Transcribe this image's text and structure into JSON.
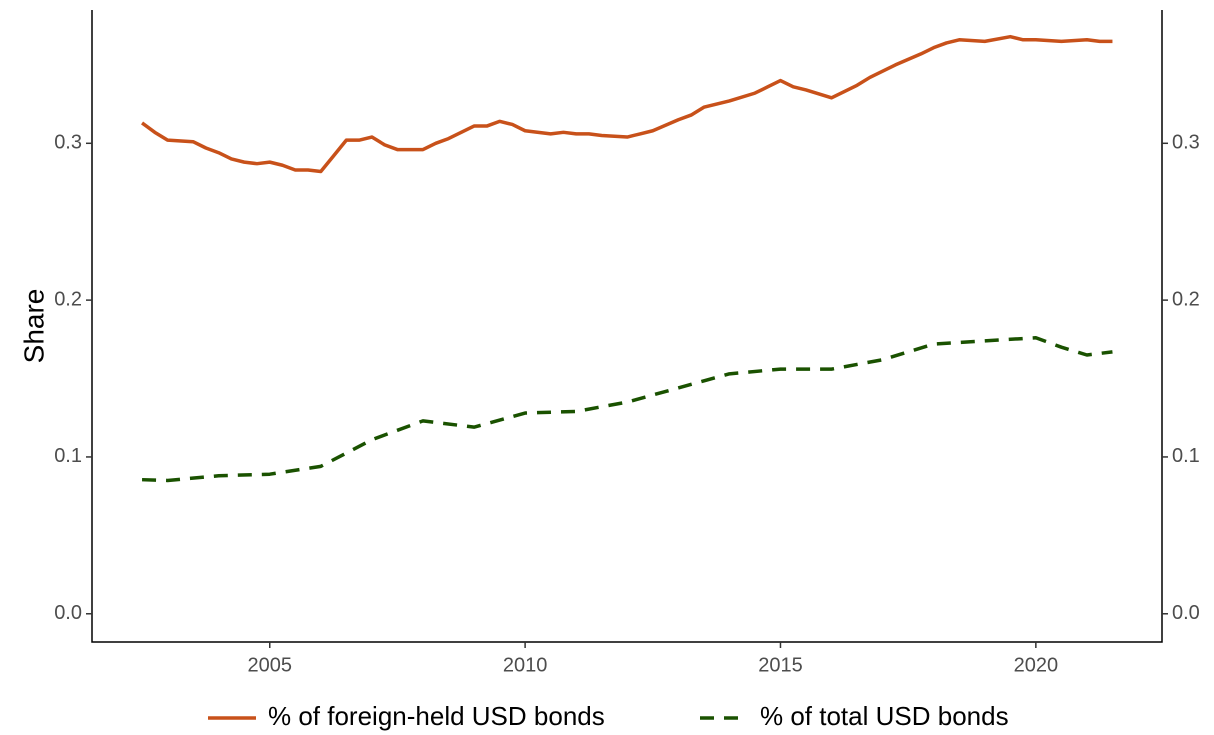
{
  "chart_data": {
    "type": "line",
    "ylabel": "Share",
    "xlim": [
      2001.52,
      2022.47
    ],
    "xticks": [
      2005,
      2010,
      2015,
      2020
    ],
    "ylim": [
      -0.018,
      0.385
    ],
    "yticks": [
      {
        "value": 0,
        "label": "0.0"
      },
      0.1,
      0.2,
      0.3
    ],
    "y2lim": [
      -0.018,
      0.385
    ],
    "y2ticks": [
      {
        "value": 0,
        "label": "0.0"
      },
      0.1,
      0.2,
      0.3
    ],
    "legend": "bottom",
    "series": [
      {
        "name": "% of foreign-held USD bonds",
        "color": "#c8511a",
        "dash": "solid",
        "x": [
          2002.5,
          2002.75,
          2003.0,
          2003.5,
          2003.75,
          2004.0,
          2004.25,
          2004.5,
          2004.75,
          2005.0,
          2005.25,
          2005.5,
          2005.75,
          2006.0,
          2006.25,
          2006.5,
          2006.75,
          2007.0,
          2007.25,
          2007.5,
          2008.0,
          2008.25,
          2008.5,
          2008.75,
          2009.0,
          2009.25,
          2009.5,
          2009.75,
          2010.0,
          2010.5,
          2010.75,
          2011.0,
          2011.25,
          2011.5,
          2012.0,
          2012.25,
          2012.5,
          2013.0,
          2013.25,
          2013.5,
          2014.0,
          2014.5,
          2014.75,
          2015.0,
          2015.25,
          2015.5,
          2016.0,
          2016.25,
          2016.5,
          2016.75,
          2017.25,
          2017.75,
          2018.0,
          2018.25,
          2018.5,
          2019.0,
          2019.5,
          2019.75,
          2020.0,
          2020.5,
          2021.0,
          2021.25,
          2021.5
        ],
        "values": [
          0.313,
          0.307,
          0.302,
          0.301,
          0.297,
          0.294,
          0.29,
          0.288,
          0.287,
          0.288,
          0.286,
          0.283,
          0.283,
          0.282,
          0.292,
          0.302,
          0.302,
          0.304,
          0.299,
          0.296,
          0.296,
          0.3,
          0.303,
          0.307,
          0.311,
          0.311,
          0.314,
          0.312,
          0.308,
          0.306,
          0.307,
          0.306,
          0.306,
          0.305,
          0.304,
          0.306,
          0.308,
          0.315,
          0.318,
          0.323,
          0.327,
          0.332,
          0.336,
          0.34,
          0.336,
          0.334,
          0.329,
          0.333,
          0.337,
          0.342,
          0.35,
          0.357,
          0.361,
          0.364,
          0.366,
          0.365,
          0.368,
          0.366,
          0.366,
          0.365,
          0.366,
          0.365,
          0.365
        ]
      },
      {
        "name": "% of total USD bonds",
        "color": "#1a5200",
        "dash": "dashed",
        "x": [
          2002.5,
          2003.0,
          2004.0,
          2005.0,
          2006.0,
          2007.0,
          2008.0,
          2009.0,
          2010.0,
          2011.0,
          2012.0,
          2013.0,
          2014.0,
          2015.0,
          2016.0,
          2017.0,
          2018.0,
          2019.0,
          2020.0,
          2020.5,
          2021.0,
          2021.5
        ],
        "values": [
          0.0855,
          0.085,
          0.088,
          0.089,
          0.094,
          0.111,
          0.123,
          0.119,
          0.128,
          0.129,
          0.135,
          0.144,
          0.153,
          0.156,
          0.156,
          0.162,
          0.172,
          0.174,
          0.176,
          0.17,
          0.165,
          0.167
        ]
      }
    ]
  }
}
